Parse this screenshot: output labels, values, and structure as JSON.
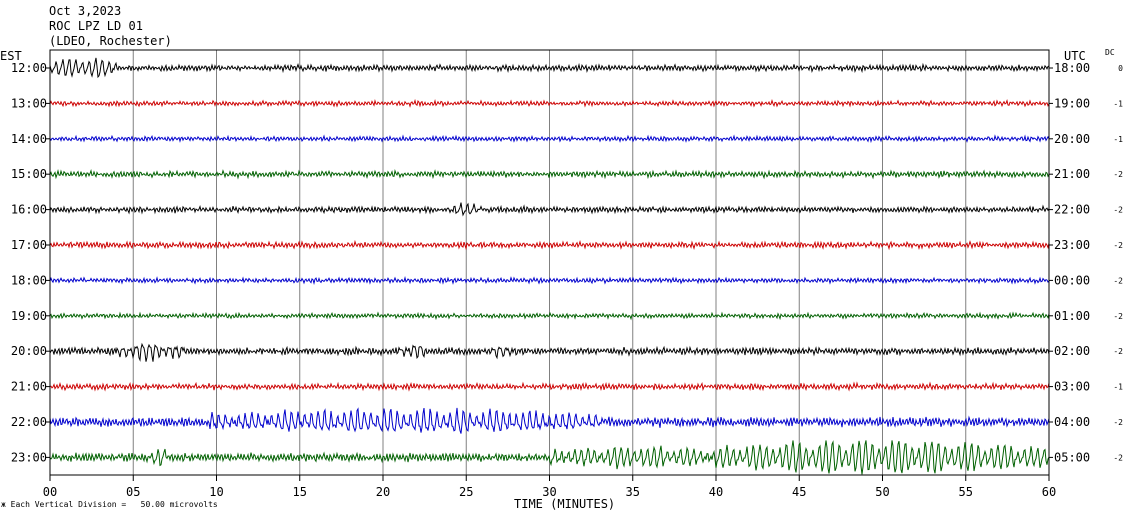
{
  "header": {
    "date": "Oct 3,2023",
    "station": "ROC LPZ LD 01",
    "network": "(LDEO, Rochester)"
  },
  "left_axis_title": "EST",
  "right_axis_title": "UTC",
  "dc_title": "DC",
  "footer_note": "Each Vertical Division =   50.00 microvolts",
  "colors": {
    "black": "#000000",
    "red": "#cc0000",
    "blue": "#0000cc",
    "green": "#006000",
    "grid": "#808080"
  },
  "chart_data": {
    "type": "line",
    "title": "ROC LPZ LD 01",
    "xlabel": "TIME (MINUTES)",
    "xlim": [
      0,
      60
    ],
    "x_ticks": [
      "00",
      "05",
      "10",
      "15",
      "20",
      "25",
      "30",
      "35",
      "40",
      "45",
      "50",
      "55",
      "60"
    ],
    "rows": [
      {
        "est": "12:00",
        "utc": "18:00",
        "dc": "0",
        "color": "black",
        "base_amp": 2.5,
        "events": [
          {
            "start": 0,
            "end": 4,
            "amp": 10
          }
        ]
      },
      {
        "est": "13:00",
        "utc": "19:00",
        "dc": "-1",
        "color": "red",
        "base_amp": 2,
        "events": []
      },
      {
        "est": "14:00",
        "utc": "20:00",
        "dc": "-1",
        "color": "blue",
        "base_amp": 2,
        "events": []
      },
      {
        "est": "15:00",
        "utc": "21:00",
        "dc": "-2",
        "color": "green",
        "base_amp": 2.5,
        "events": []
      },
      {
        "est": "16:00",
        "utc": "22:00",
        "dc": "-2",
        "color": "black",
        "base_amp": 2.5,
        "events": [
          {
            "start": 24,
            "end": 26,
            "amp": 5
          }
        ]
      },
      {
        "est": "17:00",
        "utc": "23:00",
        "dc": "-2",
        "color": "red",
        "base_amp": 2.5,
        "events": []
      },
      {
        "est": "18:00",
        "utc": "00:00",
        "dc": "-2",
        "color": "blue",
        "base_amp": 2,
        "events": []
      },
      {
        "est": "19:00",
        "utc": "01:00",
        "dc": "-2",
        "color": "green",
        "base_amp": 2,
        "events": []
      },
      {
        "est": "20:00",
        "utc": "02:00",
        "dc": "-2",
        "color": "black",
        "base_amp": 3,
        "events": [
          {
            "start": 4,
            "end": 8,
            "amp": 8
          },
          {
            "start": 21,
            "end": 22.5,
            "amp": 8
          },
          {
            "start": 26.5,
            "end": 28,
            "amp": 6
          }
        ]
      },
      {
        "est": "21:00",
        "utc": "03:00",
        "dc": "-1",
        "color": "red",
        "base_amp": 2.5,
        "events": []
      },
      {
        "est": "22:00",
        "utc": "04:00",
        "dc": "-2",
        "color": "blue",
        "base_amp": 4,
        "events": [
          {
            "start": 9.5,
            "end": 33,
            "amp": 11
          }
        ]
      },
      {
        "est": "23:00",
        "utc": "05:00",
        "dc": "-2",
        "color": "green",
        "base_amp": 3.5,
        "events": [
          {
            "start": 6,
            "end": 7,
            "amp": 8
          },
          {
            "start": 30,
            "end": 40,
            "amp": 10
          },
          {
            "start": 40,
            "end": 60,
            "amp": 17
          }
        ]
      }
    ]
  }
}
